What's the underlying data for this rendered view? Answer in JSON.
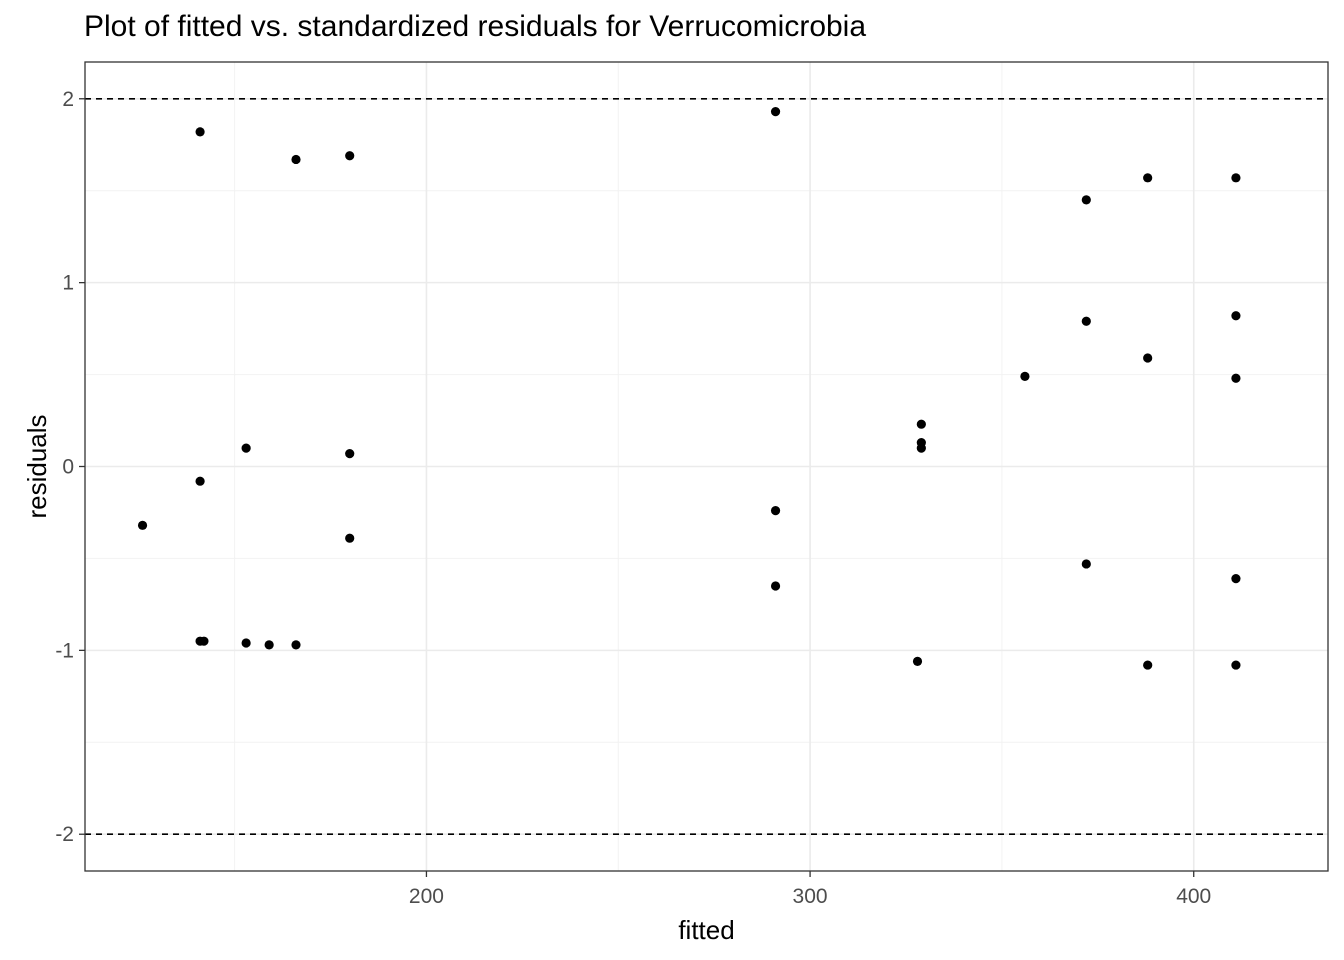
{
  "chart_data": {
    "type": "scatter",
    "title": "Plot of fitted vs. standardized residuals for Verrucomicrobia",
    "xlabel": "fitted",
    "ylabel": "residuals",
    "xlim": [
      111,
      435
    ],
    "ylim": [
      -2.2,
      2.2
    ],
    "x_ticks": [
      200,
      300,
      400
    ],
    "y_ticks": [
      -2,
      -1,
      0,
      1,
      2
    ],
    "x_tick_labels": [
      "200",
      "300",
      "400"
    ],
    "y_tick_labels": [
      "-2",
      "-1",
      "0",
      "1",
      "2"
    ],
    "reference_lines_y": [
      -2,
      2
    ],
    "reference_line_style": "dashed",
    "grid": true,
    "point_color": "#000000",
    "points": [
      {
        "x": 126,
        "y": -0.32
      },
      {
        "x": 141,
        "y": 1.82
      },
      {
        "x": 141,
        "y": -0.08
      },
      {
        "x": 141,
        "y": -0.95
      },
      {
        "x": 142,
        "y": -0.95
      },
      {
        "x": 153,
        "y": 0.1
      },
      {
        "x": 153,
        "y": -0.96
      },
      {
        "x": 159,
        "y": -0.97
      },
      {
        "x": 166,
        "y": 1.67
      },
      {
        "x": 166,
        "y": -0.97
      },
      {
        "x": 180,
        "y": 1.69
      },
      {
        "x": 180,
        "y": 0.07
      },
      {
        "x": 180,
        "y": -0.39
      },
      {
        "x": 291,
        "y": 1.93
      },
      {
        "x": 291,
        "y": -0.24
      },
      {
        "x": 291,
        "y": -0.65
      },
      {
        "x": 328,
        "y": -1.06
      },
      {
        "x": 329,
        "y": 0.23
      },
      {
        "x": 329,
        "y": 0.13
      },
      {
        "x": 329,
        "y": 0.1
      },
      {
        "x": 356,
        "y": 0.49
      },
      {
        "x": 372,
        "y": 1.45
      },
      {
        "x": 372,
        "y": 0.79
      },
      {
        "x": 372,
        "y": -0.53
      },
      {
        "x": 388,
        "y": 1.57
      },
      {
        "x": 388,
        "y": 0.59
      },
      {
        "x": 388,
        "y": -1.08
      },
      {
        "x": 411,
        "y": 1.57
      },
      {
        "x": 411,
        "y": 0.82
      },
      {
        "x": 411,
        "y": 0.48
      },
      {
        "x": 411,
        "y": -0.61
      },
      {
        "x": 411,
        "y": -1.08
      }
    ]
  }
}
